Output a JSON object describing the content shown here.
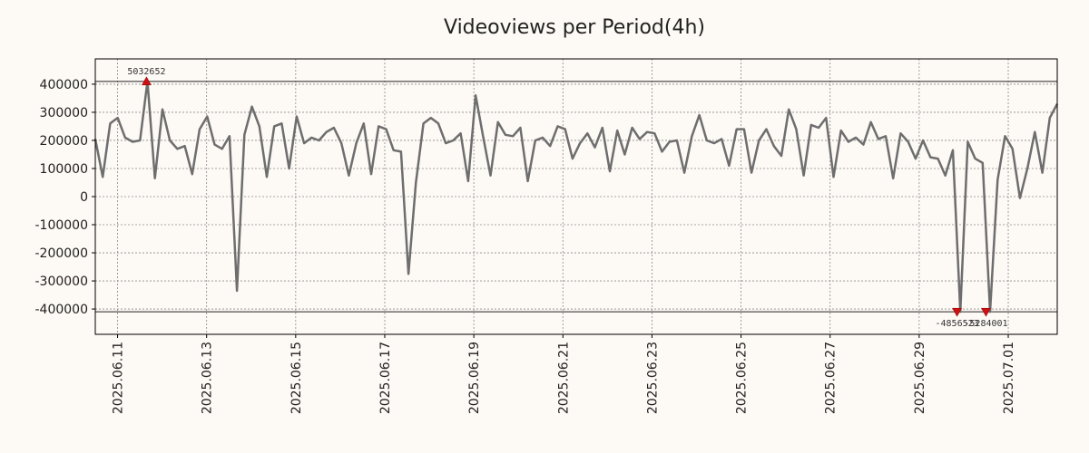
{
  "chart_data": {
    "type": "line",
    "title": "Videoviews per Period(4h)",
    "xlabel": "",
    "ylabel": "",
    "ylim": [
      -490000,
      490000
    ],
    "xlim_days": [
      0,
      21.6
    ],
    "yticks": [
      400000,
      300000,
      200000,
      100000,
      0,
      -100000,
      -200000,
      -300000,
      -400000
    ],
    "ytick_labels": [
      "400000",
      "300000",
      "200000",
      "100000",
      "0",
      "-100000",
      "-200000",
      "-300000",
      "-400000"
    ],
    "xticks_days": [
      0.5,
      2.5,
      4.5,
      6.5,
      8.5,
      10.5,
      12.5,
      14.5,
      16.5,
      18.5,
      20.5
    ],
    "xtick_labels": [
      "2025.06.11",
      "2025.06.13",
      "2025.06.15",
      "2025.06.17",
      "2025.06.19",
      "2025.06.21",
      "2025.06.23",
      "2025.06.25",
      "2025.06.27",
      "2025.06.29",
      "2025.07.01"
    ],
    "grid": true,
    "series": [
      {
        "name": "videoviews",
        "color": "#6e6e6e",
        "values": [
          205000,
          70000,
          260000,
          280000,
          210000,
          195000,
          200000,
          410000,
          65000,
          310000,
          200000,
          170000,
          180000,
          80000,
          240000,
          285000,
          185000,
          170000,
          215000,
          -335000,
          220000,
          320000,
          250000,
          70000,
          250000,
          260000,
          100000,
          285000,
          190000,
          210000,
          200000,
          230000,
          245000,
          190000,
          75000,
          190000,
          260000,
          80000,
          250000,
          240000,
          165000,
          160000,
          -275000,
          50000,
          260000,
          280000,
          260000,
          190000,
          200000,
          225000,
          55000,
          360000,
          215000,
          75000,
          265000,
          220000,
          215000,
          245000,
          55000,
          200000,
          210000,
          180000,
          250000,
          240000,
          135000,
          190000,
          225000,
          175000,
          245000,
          90000,
          235000,
          150000,
          245000,
          205000,
          230000,
          225000,
          160000,
          195000,
          200000,
          85000,
          215000,
          290000,
          200000,
          190000,
          205000,
          110000,
          240000,
          240000,
          85000,
          200000,
          240000,
          180000,
          145000,
          310000,
          240000,
          75000,
          255000,
          245000,
          280000,
          70000,
          235000,
          195000,
          210000,
          185000,
          265000,
          205000,
          215000,
          65000,
          225000,
          195000,
          135000,
          200000,
          140000,
          135000,
          75000,
          165000,
          -410000,
          195000,
          135000,
          120000,
          -410000,
          60000,
          215000,
          170000,
          -5000,
          100000,
          230000,
          85000,
          280000,
          330000
        ]
      }
    ],
    "markers": [
      {
        "label": "5032652",
        "x_day": 1.15,
        "y": 410000,
        "direction": "up"
      },
      {
        "label": "-4856523",
        "x_day": 19.35,
        "y": -410000,
        "direction": "down"
      },
      {
        "label": "-5284001",
        "x_day": 20.0,
        "y": -410000,
        "direction": "down"
      }
    ],
    "clip_lines": [
      410000,
      -410000
    ]
  }
}
